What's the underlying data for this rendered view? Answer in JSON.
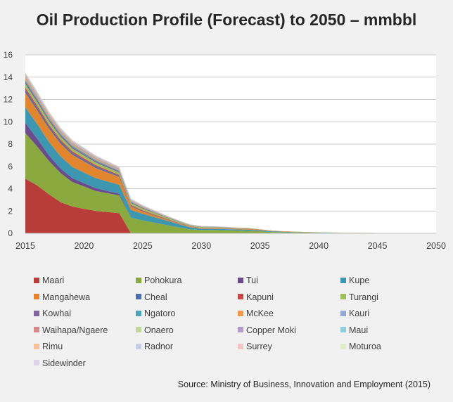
{
  "chart_data": {
    "type": "area",
    "stacked": true,
    "title": "Oil Production Profile (Forecast) to 2050 – mmbbl",
    "xlabel": "",
    "ylabel": "",
    "xlim": [
      2015,
      2050
    ],
    "ylim": [
      0,
      16
    ],
    "x_ticks": [
      2015,
      2020,
      2025,
      2030,
      2035,
      2040,
      2045,
      2050
    ],
    "y_ticks": [
      0,
      2,
      4,
      6,
      8,
      10,
      12,
      14,
      16
    ],
    "grid": true,
    "legend_position": "bottom",
    "x": [
      2015,
      2016,
      2017,
      2018,
      2019,
      2020,
      2021,
      2022,
      2023,
      2024,
      2025,
      2026,
      2027,
      2028,
      2029,
      2030,
      2031,
      2032,
      2033,
      2034,
      2035,
      2036,
      2037,
      2038,
      2039,
      2040,
      2041,
      2042,
      2043,
      2044,
      2045,
      2046,
      2047,
      2048,
      2049,
      2050
    ],
    "series": [
      {
        "name": "Maari",
        "color": "#b83c3a",
        "values": [
          4.9,
          4.3,
          3.5,
          2.8,
          2.4,
          2.2,
          2.0,
          1.9,
          1.8,
          0,
          0,
          0,
          0,
          0,
          0,
          0,
          0,
          0,
          0,
          0,
          0,
          0,
          0,
          0,
          0,
          0,
          0,
          0,
          0,
          0,
          0,
          0,
          0,
          0,
          0,
          0
        ]
      },
      {
        "name": "Pohokura",
        "color": "#8aaa3f",
        "values": [
          4.1,
          3.5,
          3.0,
          2.6,
          2.2,
          2.0,
          1.8,
          1.7,
          1.6,
          1.4,
          1.15,
          0.95,
          0.75,
          0.55,
          0.35,
          0.3,
          0.3,
          0.28,
          0.25,
          0.22,
          0.18,
          0.12,
          0.1,
          0.08,
          0.06,
          0.05,
          0.04,
          0.03,
          0.02,
          0.02,
          0.02,
          0.01,
          0.01,
          0.01,
          0.01,
          0
        ]
      },
      {
        "name": "Tui",
        "color": "#6a4b8c",
        "values": [
          0.9,
          0.7,
          0.5,
          0.4,
          0.35,
          0.3,
          0.25,
          0.2,
          0.15,
          0,
          0,
          0,
          0,
          0,
          0,
          0,
          0,
          0,
          0,
          0,
          0,
          0,
          0,
          0,
          0,
          0,
          0,
          0,
          0,
          0,
          0,
          0,
          0,
          0,
          0,
          0
        ]
      },
      {
        "name": "Kupe",
        "color": "#3d97b0",
        "values": [
          1.4,
          1.3,
          1.2,
          1.1,
          1.0,
          0.95,
          0.9,
          0.85,
          0.8,
          0.7,
          0.6,
          0.5,
          0.4,
          0.3,
          0.2,
          0.1,
          0.1,
          0.1,
          0.1,
          0.1,
          0.08,
          0.05,
          0.04,
          0.03,
          0.02,
          0.02,
          0.02,
          0.01,
          0.01,
          0.01,
          0,
          0,
          0,
          0,
          0,
          0
        ]
      },
      {
        "name": "Mangahewa",
        "color": "#e2852f",
        "values": [
          1.3,
          1.25,
          1.2,
          1.15,
          1.1,
          1.0,
          0.9,
          0.8,
          0.7,
          0.3,
          0.2,
          0.15,
          0.1,
          0.05,
          0.05,
          0.05,
          0.05,
          0.05,
          0.05,
          0.05,
          0.04,
          0.03,
          0.02,
          0.02,
          0.01,
          0.01,
          0.01,
          0.01,
          0.01,
          0.01,
          0,
          0,
          0,
          0,
          0,
          0
        ]
      },
      {
        "name": "Cheal",
        "color": "#4d6eb3",
        "values": [
          0.25,
          0.22,
          0.2,
          0.18,
          0.16,
          0.15,
          0.14,
          0.12,
          0.1,
          0.05,
          0.04,
          0.03,
          0.02,
          0.02,
          0.01,
          0.01,
          0.01,
          0.01,
          0.01,
          0.01,
          0,
          0,
          0,
          0,
          0,
          0,
          0,
          0,
          0,
          0,
          0,
          0,
          0,
          0,
          0,
          0
        ]
      },
      {
        "name": "Kapuni",
        "color": "#c44a48",
        "values": [
          0.2,
          0.18,
          0.16,
          0.15,
          0.14,
          0.13,
          0.12,
          0.1,
          0.1,
          0.08,
          0.07,
          0.06,
          0.05,
          0.04,
          0.03,
          0.03,
          0.03,
          0.02,
          0.02,
          0.02,
          0.02,
          0.01,
          0.01,
          0.01,
          0.01,
          0,
          0,
          0,
          0,
          0,
          0,
          0,
          0,
          0,
          0,
          0
        ]
      },
      {
        "name": "Turangi",
        "color": "#a2bd5e",
        "values": [
          0.35,
          0.33,
          0.3,
          0.28,
          0.26,
          0.25,
          0.24,
          0.22,
          0.2,
          0.18,
          0.16,
          0.14,
          0.12,
          0.1,
          0.08,
          0.07,
          0.06,
          0.05,
          0.04,
          0.04,
          0.03,
          0.03,
          0.02,
          0.02,
          0.02,
          0.02,
          0.01,
          0.01,
          0.01,
          0.01,
          0.01,
          0.01,
          0,
          0,
          0,
          0
        ]
      },
      {
        "name": "Kowhai",
        "color": "#806799",
        "values": [
          0.2,
          0.18,
          0.16,
          0.15,
          0.14,
          0.13,
          0.12,
          0.11,
          0.1,
          0.08,
          0.06,
          0.05,
          0.04,
          0.03,
          0.02,
          0.02,
          0.02,
          0.02,
          0.01,
          0.01,
          0.01,
          0.01,
          0,
          0,
          0,
          0,
          0,
          0,
          0,
          0,
          0,
          0,
          0,
          0,
          0,
          0
        ]
      },
      {
        "name": "Ngatoro",
        "color": "#4aa5bd",
        "values": [
          0.15,
          0.14,
          0.13,
          0.12,
          0.11,
          0.1,
          0.09,
          0.08,
          0.07,
          0.05,
          0.04,
          0.03,
          0.02,
          0.02,
          0.01,
          0.01,
          0.01,
          0.01,
          0.01,
          0.01,
          0,
          0,
          0,
          0,
          0,
          0,
          0,
          0,
          0,
          0,
          0,
          0,
          0,
          0,
          0,
          0
        ]
      },
      {
        "name": "McKee",
        "color": "#f09a4a",
        "values": [
          0.15,
          0.14,
          0.13,
          0.12,
          0.11,
          0.1,
          0.09,
          0.08,
          0.07,
          0.05,
          0.04,
          0.03,
          0.02,
          0.02,
          0.01,
          0.01,
          0.01,
          0.01,
          0.01,
          0.01,
          0,
          0,
          0,
          0,
          0,
          0,
          0,
          0,
          0,
          0,
          0,
          0,
          0,
          0,
          0,
          0
        ]
      },
      {
        "name": "Kauri",
        "color": "#95a8d6",
        "values": [
          0.1,
          0.1,
          0.09,
          0.09,
          0.08,
          0.08,
          0.07,
          0.07,
          0.06,
          0.05,
          0.04,
          0.03,
          0.02,
          0.02,
          0.01,
          0.01,
          0.01,
          0.01,
          0.01,
          0.01,
          0,
          0,
          0,
          0,
          0,
          0,
          0,
          0,
          0,
          0,
          0,
          0,
          0,
          0,
          0,
          0
        ]
      },
      {
        "name": "Waihapa/Ngaere",
        "color": "#d68b89",
        "values": [
          0.1,
          0.09,
          0.08,
          0.08,
          0.07,
          0.07,
          0.06,
          0.06,
          0.05,
          0.04,
          0.03,
          0.02,
          0.02,
          0.01,
          0.01,
          0.01,
          0.01,
          0.01,
          0.01,
          0.01,
          0,
          0,
          0,
          0,
          0,
          0,
          0,
          0,
          0,
          0,
          0,
          0,
          0,
          0,
          0,
          0
        ]
      },
      {
        "name": "Onaero",
        "color": "#c4d79b",
        "values": [
          0.08,
          0.07,
          0.07,
          0.06,
          0.06,
          0.05,
          0.05,
          0.05,
          0.04,
          0.03,
          0.02,
          0.02,
          0.01,
          0.01,
          0.01,
          0.01,
          0.01,
          0.01,
          0,
          0,
          0,
          0,
          0,
          0,
          0,
          0,
          0,
          0,
          0,
          0,
          0,
          0,
          0,
          0,
          0,
          0
        ]
      },
      {
        "name": "Copper Moki",
        "color": "#b39dc8",
        "values": [
          0.07,
          0.06,
          0.06,
          0.05,
          0.05,
          0.05,
          0.04,
          0.04,
          0.04,
          0.03,
          0.02,
          0.02,
          0.01,
          0.01,
          0.01,
          0.01,
          0.01,
          0.01,
          0,
          0,
          0,
          0,
          0,
          0,
          0,
          0,
          0,
          0,
          0,
          0,
          0,
          0,
          0,
          0,
          0,
          0
        ]
      },
      {
        "name": "Maui",
        "color": "#92cddc",
        "values": [
          0.05,
          0.05,
          0.05,
          0.04,
          0.04,
          0.04,
          0.04,
          0.03,
          0.03,
          0.02,
          0.02,
          0.01,
          0.01,
          0.01,
          0.01,
          0.01,
          0,
          0,
          0,
          0,
          0,
          0,
          0,
          0,
          0,
          0,
          0,
          0,
          0,
          0,
          0,
          0,
          0,
          0,
          0,
          0
        ]
      },
      {
        "name": "Rimu",
        "color": "#f7c09a",
        "values": [
          0.05,
          0.05,
          0.04,
          0.04,
          0.04,
          0.03,
          0.03,
          0.03,
          0.03,
          0.02,
          0.02,
          0.01,
          0.01,
          0.01,
          0.01,
          0.01,
          0,
          0,
          0,
          0,
          0,
          0,
          0,
          0,
          0,
          0,
          0,
          0,
          0,
          0,
          0,
          0,
          0,
          0,
          0,
          0
        ]
      },
      {
        "name": "Radnor",
        "color": "#c5cde8",
        "values": [
          0.04,
          0.04,
          0.04,
          0.03,
          0.03,
          0.03,
          0.03,
          0.02,
          0.02,
          0.02,
          0.01,
          0.01,
          0.01,
          0.01,
          0,
          0,
          0,
          0,
          0,
          0,
          0,
          0,
          0,
          0,
          0,
          0,
          0,
          0,
          0,
          0,
          0,
          0,
          0,
          0,
          0,
          0
        ]
      },
      {
        "name": "Surrey",
        "color": "#f1c7c6",
        "values": [
          0.03,
          0.03,
          0.03,
          0.03,
          0.02,
          0.02,
          0.02,
          0.02,
          0.02,
          0.01,
          0.01,
          0.01,
          0.01,
          0,
          0,
          0,
          0,
          0,
          0,
          0,
          0,
          0,
          0,
          0,
          0,
          0,
          0,
          0,
          0,
          0,
          0,
          0,
          0,
          0,
          0,
          0
        ]
      },
      {
        "name": "Moturoa",
        "color": "#e3edc9",
        "values": [
          0.02,
          0.02,
          0.02,
          0.02,
          0.02,
          0.02,
          0.01,
          0.01,
          0.01,
          0.01,
          0.01,
          0.01,
          0,
          0,
          0,
          0,
          0,
          0,
          0,
          0,
          0,
          0,
          0,
          0,
          0,
          0,
          0,
          0,
          0,
          0,
          0,
          0,
          0,
          0,
          0,
          0
        ]
      },
      {
        "name": "Sidewinder",
        "color": "#ddd4e8",
        "values": [
          0.02,
          0.02,
          0.02,
          0.02,
          0.02,
          0.01,
          0.01,
          0.01,
          0.01,
          0.01,
          0.01,
          0,
          0,
          0,
          0,
          0,
          0,
          0,
          0,
          0,
          0,
          0,
          0,
          0,
          0,
          0,
          0,
          0,
          0,
          0,
          0,
          0,
          0,
          0,
          0,
          0
        ]
      }
    ]
  },
  "source_note": "Source: Ministry of Business, Innovation and Employment (2015)"
}
